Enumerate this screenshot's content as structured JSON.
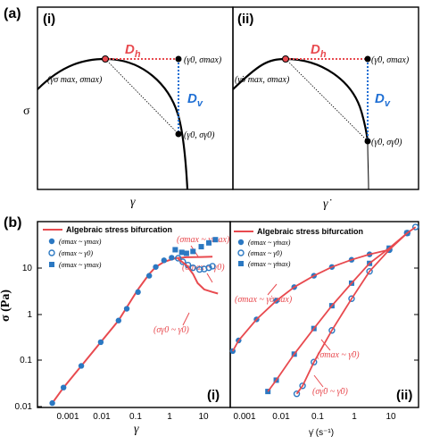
{
  "colors": {
    "red": "#e84a4f",
    "blue": "#2b78c2",
    "dash_blue": "#1f6fd4",
    "black": "#000000"
  },
  "panel_a": {
    "label": "(a)",
    "y_axis_label": "σ",
    "left": {
      "sub_label": "(i)",
      "x_axis_label": "γ",
      "dh_label": "D",
      "dh_sub": "h",
      "dv_label": "D",
      "dv_sub": "v",
      "ann_max": "(γσ max, σmax)",
      "ann_top": "(γ0, σmax)",
      "ann_bottom": "(γ0, σγ0)"
    },
    "right": {
      "sub_label": "(ii)",
      "x_axis_label": "γ̇",
      "dh_label": "D",
      "dh_sub": "h",
      "dv_label": "D",
      "dv_sub": "v",
      "ann_max": "(γ̇σ max, σmax)",
      "ann_top": "(γ̇0, σmax)",
      "ann_bottom": "(γ̇0, σγ̇0)"
    }
  },
  "panel_b": {
    "label": "(b)",
    "y_axis_label": "σ (Pa)",
    "left_sub_label": "(i)",
    "right_sub_label": "(ii)",
    "left_x_label": "γ",
    "right_x_label": "γ̇ (s⁻¹)",
    "y_ticks": [
      "10",
      "1",
      "0.1",
      "0.01"
    ],
    "left_x_ticks": [
      "0.001",
      "0.01",
      "0.1",
      "1",
      "10"
    ],
    "right_x_ticks": [
      "0.001",
      "0.01",
      "0.1",
      "1",
      "10"
    ],
    "legend": {
      "line": "Algebraic stress bifurcation",
      "filled_circle": "(σmax ~ γmax)",
      "open_circle": "(σmax ~ γ0)",
      "square": "(σmax ~ γmax)"
    },
    "legend_right": {
      "line": "Algebraic stress bifurcation",
      "filled_circle": "(σmax ~ γ̇max)",
      "open_circle": "(σmax ~ γ̇0)",
      "square": "(σmax ~ γ̇max)"
    },
    "annotations_left": {
      "top": "(σmax ~ γmax)",
      "middle": "(σmax ~ γ0)",
      "bottom": "(σγ0 ~ γ0)"
    },
    "annotations_right": {
      "top": "(σmax ~ γ̇σmax)",
      "middle": "(σmax ~ γ̇0)",
      "bottom": "(σγ̇0 ~ γ̇0)"
    }
  },
  "chart_data": [
    {
      "type": "scatter",
      "panel": "b(i)",
      "xlabel": "γ",
      "ylabel": "σ (Pa)",
      "x_scale": "log",
      "y_scale": "log",
      "xlim": [
        0.0002,
        30
      ],
      "ylim": [
        0.004,
        50
      ],
      "series": [
        {
          "name": "Algebraic stress bifurcation",
          "kind": "line",
          "x": [
            0.0005,
            0.001,
            0.003,
            0.01,
            0.03,
            0.1,
            0.2,
            0.3,
            0.5,
            1,
            2,
            5,
            10
          ],
          "y": [
            0.005,
            0.011,
            0.033,
            0.11,
            0.33,
            1.6,
            3.5,
            5,
            6.5,
            7.8,
            8.2,
            8.3,
            8.4
          ]
        },
        {
          "name": "(σmax ~ γmax)",
          "kind": "filled_circle",
          "x": [
            0.0005,
            0.001,
            0.003,
            0.01,
            0.03,
            0.05,
            0.1,
            0.2,
            0.3,
            0.5,
            0.8
          ],
          "y": [
            0.005,
            0.011,
            0.033,
            0.11,
            0.33,
            0.6,
            1.4,
            3.2,
            5.0,
            7.0,
            8.0
          ]
        },
        {
          "name": "(σmax ~ γ0)",
          "kind": "open_circle",
          "x": [
            1.2,
            1.6,
            2.2,
            3,
            4.5,
            6,
            8,
            10
          ],
          "y": [
            7.8,
            6.5,
            5.5,
            4.8,
            4.4,
            4.5,
            4.8,
            5.2
          ]
        },
        {
          "name": "(σmax ~ γmax)",
          "kind": "square",
          "x": [
            1,
            1.5,
            2,
            3,
            5,
            8,
            12
          ],
          "y": [
            12,
            10.5,
            10,
            11,
            14,
            17,
            20
          ]
        },
        {
          "name": "(σγ0 ~ γ0)",
          "kind": "line",
          "x": [
            1.2,
            2,
            3,
            4,
            6,
            10,
            14
          ],
          "y": [
            7.5,
            5.5,
            3.5,
            2.2,
            1.6,
            1.4,
            1.3
          ]
        }
      ]
    },
    {
      "type": "scatter",
      "panel": "b(ii)",
      "xlabel": "γ̇ (s⁻¹)",
      "ylabel": "σ (Pa)",
      "x_scale": "log",
      "y_scale": "log",
      "xlim": [
        0.0006,
        60
      ],
      "ylim": [
        0.004,
        50
      ],
      "series": [
        {
          "name": "(σmax ~ γ̇σmax)",
          "kind": "filled_circle",
          "x": [
            0.0007,
            0.001,
            0.003,
            0.01,
            0.03,
            0.1,
            0.3,
            1,
            3,
            10
          ],
          "y": [
            0.07,
            0.12,
            0.35,
            0.9,
            1.8,
            3.2,
            5.0,
            7.2,
            9.5,
            12
          ]
        },
        {
          "name": "(σmax ~ γ̇0)",
          "kind": "square",
          "x": [
            0.006,
            0.01,
            0.03,
            0.1,
            0.3,
            1,
            3,
            10,
            30
          ],
          "y": [
            0.009,
            0.016,
            0.06,
            0.22,
            0.7,
            2.2,
            6,
            13,
            28
          ]
        },
        {
          "name": "(σγ̇0 ~ γ̇0)",
          "kind": "open_circle",
          "x": [
            0.035,
            0.05,
            0.1,
            0.3,
            1,
            3,
            10,
            30,
            50
          ],
          "y": [
            0.008,
            0.012,
            0.04,
            0.2,
            1.0,
            4,
            12,
            28,
            38
          ]
        }
      ]
    }
  ]
}
